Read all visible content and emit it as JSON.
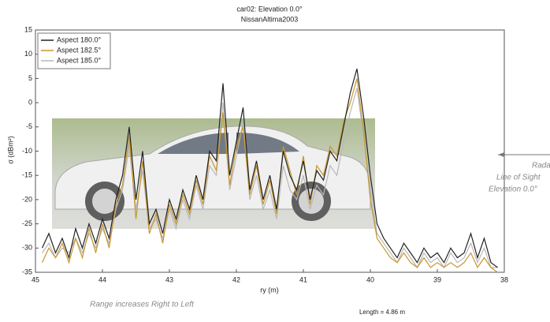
{
  "chart_data": {
    "type": "line",
    "title": "car02:  Elevation 0.0°",
    "subtitle": "NissanAltima2003",
    "x_label": "ry (m)",
    "y_label": "σ (dBm²)",
    "annotations": [
      "Range increases Right to Left",
      "Length = 4.86 m",
      "Radar",
      "Line of Sight",
      "Elevation 0.0°"
    ],
    "xlim": [
      45,
      38
    ],
    "xticks": [
      45,
      44,
      43,
      42,
      41,
      40,
      39,
      38
    ],
    "ylim": [
      -35,
      15
    ],
    "yticks": [
      -35,
      -30,
      -25,
      -20,
      -15,
      -10,
      -5,
      0,
      5,
      10,
      15
    ],
    "legend": "upper left",
    "x": [
      44.9,
      44.8,
      44.7,
      44.6,
      44.5,
      44.4,
      44.3,
      44.2,
      44.1,
      44.0,
      43.9,
      43.8,
      43.7,
      43.6,
      43.5,
      43.4,
      43.3,
      43.2,
      43.1,
      43.0,
      42.9,
      42.8,
      42.7,
      42.6,
      42.5,
      42.4,
      42.3,
      42.2,
      42.1,
      42.0,
      41.9,
      41.8,
      41.7,
      41.6,
      41.5,
      41.4,
      41.3,
      41.2,
      41.1,
      41.0,
      40.9,
      40.8,
      40.7,
      40.6,
      40.5,
      40.4,
      40.3,
      40.2,
      40.1,
      40.0,
      39.9,
      39.8,
      39.7,
      39.6,
      39.5,
      39.4,
      39.3,
      39.2,
      39.1,
      39.0,
      38.9,
      38.8,
      38.7,
      38.6,
      38.5,
      38.4,
      38.3,
      38.2,
      38.1
    ],
    "series": [
      {
        "name": "Aspect 185.0°",
        "color": "#b8b8b8",
        "values": [
          -31,
          -29,
          -32,
          -30,
          -31,
          -28,
          -31,
          -27,
          -30,
          -26,
          -29,
          -22,
          -18,
          -9,
          -22,
          -14,
          -26,
          -24,
          -28,
          -22,
          -26,
          -20,
          -24,
          -17,
          -22,
          -13,
          -15,
          0,
          -18,
          -11,
          -4,
          -20,
          -15,
          -22,
          -18,
          -24,
          -13,
          -18,
          -20,
          -15,
          -22,
          -17,
          -19,
          -13,
          -15,
          -8,
          -2,
          3,
          -7,
          -18,
          -27,
          -29,
          -31,
          -33,
          -30,
          -32,
          -34,
          -31,
          -33,
          -32,
          -34,
          -31,
          -33,
          -32,
          -29,
          -33,
          -30,
          -34,
          -34
        ]
      },
      {
        "name": "Aspect 182.5°",
        "color": "#c8962e",
        "values": [
          -33,
          -30,
          -32,
          -29,
          -33,
          -28,
          -32,
          -26,
          -31,
          -25,
          -30,
          -21,
          -17,
          -7,
          -24,
          -12,
          -27,
          -23,
          -29,
          -21,
          -25,
          -19,
          -23,
          -16,
          -21,
          -11,
          -14,
          -2,
          -17,
          -9,
          -5,
          -19,
          -13,
          -21,
          -16,
          -23,
          -9,
          -14,
          -19,
          -11,
          -21,
          -13,
          -15,
          -9,
          -11,
          -4,
          0,
          5,
          -6,
          -20,
          -28,
          -30,
          -32,
          -33,
          -31,
          -33,
          -34,
          -32,
          -34,
          -33,
          -34,
          -33,
          -34,
          -33,
          -31,
          -34,
          -32,
          -34,
          -35
        ]
      },
      {
        "name": "Aspect 180.0°",
        "color": "#222222",
        "values": [
          -30,
          -27,
          -31,
          -28,
          -32,
          -26,
          -30,
          -25,
          -29,
          -24,
          -28,
          -20,
          -15,
          -5,
          -20,
          -10,
          -25,
          -22,
          -27,
          -20,
          -24,
          -18,
          -22,
          -15,
          -20,
          -10,
          -12,
          4,
          -15,
          -8,
          -1,
          -18,
          -12,
          -20,
          -15,
          -22,
          -10,
          -15,
          -18,
          -12,
          -20,
          -14,
          -16,
          -10,
          -12,
          -5,
          2,
          7,
          -3,
          -15,
          -25,
          -28,
          -30,
          -32,
          -29,
          -31,
          -33,
          -30,
          -32,
          -31,
          -33,
          -30,
          -32,
          -31,
          -27,
          -32,
          -28,
          -33,
          -34
        ]
      }
    ]
  }
}
